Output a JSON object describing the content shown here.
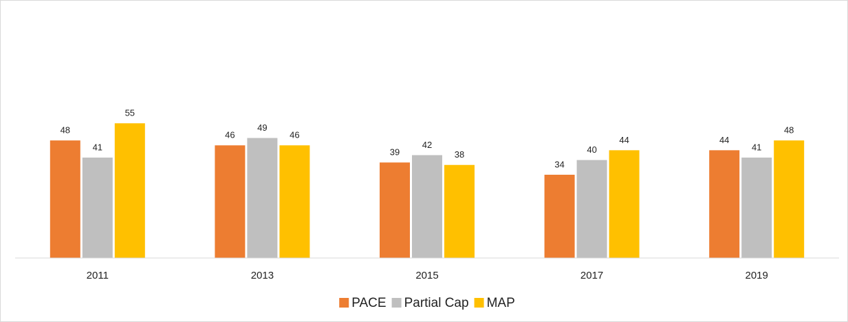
{
  "chart_data": {
    "type": "bar",
    "categories": [
      "2011",
      "2013",
      "2015",
      "2017",
      "2019"
    ],
    "series": [
      {
        "name": "PACE",
        "color": "#ED7D31",
        "values": [
          48,
          46,
          39,
          34,
          44
        ]
      },
      {
        "name": "Partial Cap",
        "color": "#BFBFBF",
        "values": [
          41,
          49,
          42,
          40,
          41
        ]
      },
      {
        "name": "MAP",
        "color": "#FFC000",
        "values": [
          55,
          46,
          38,
          44,
          48
        ]
      }
    ],
    "ylim": [
      0,
      100
    ],
    "legend": "bottom"
  }
}
